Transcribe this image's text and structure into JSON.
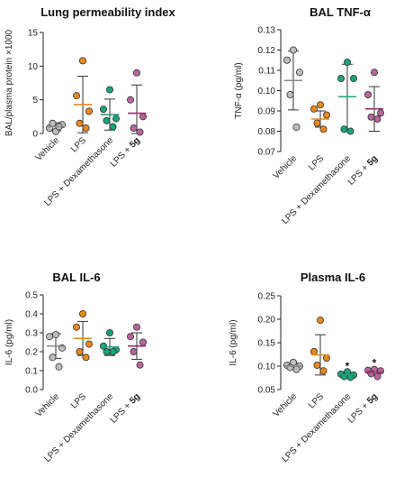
{
  "colors": {
    "vehicle": "#bdbdbd",
    "lps": "#e8891c",
    "dexamethasone": "#1aa37a",
    "lps5g": "#b5669a",
    "mean_vehicle": "#8a8a8a",
    "mean_lps": "#e8891c",
    "mean_dex": "#1aa37a",
    "mean_5g": "#9c2a6a"
  },
  "chart_data": [
    {
      "type": "scatter",
      "title": "Lung permeability index",
      "ylabel": "BAL/plasma protein ×1000",
      "ylim": [
        0,
        15
      ],
      "yticks": [
        "0",
        "5",
        "10",
        "15"
      ],
      "categories": [
        {
          "label": "Vehicle",
          "plain": "Vehicle",
          "bold": ""
        },
        {
          "label": "LPS",
          "plain": "LPS",
          "bold": ""
        },
        {
          "label": "LPS + Dexamethasone",
          "plain": "LPS + Dexamethasone",
          "bold": ""
        },
        {
          "label": "LPS + 5g",
          "plain": "LPS + ",
          "bold": "5g"
        }
      ],
      "series": [
        {
          "points": [
            0.3,
            0.8,
            1.3,
            1.5,
            1.0
          ],
          "mean": 1.0,
          "sd": 0.6
        },
        {
          "points": [
            10.8,
            5.6,
            3.3,
            1.5,
            0.8
          ],
          "mean": 4.3,
          "sd": 4.2
        },
        {
          "points": [
            6.5,
            3.6,
            2.2,
            1.9,
            1.0
          ],
          "mean": 2.8,
          "sd": 2.3
        },
        {
          "points": [
            9.0,
            5.0,
            2.5,
            0.8,
            0.2
          ],
          "mean": 3.0,
          "sd": 4.2
        }
      ],
      "stars": [
        "",
        "",
        "",
        ""
      ]
    },
    {
      "type": "scatter",
      "title": "BAL TNF-α",
      "ylabel": "TNF-α (pg/ml)",
      "ylim": [
        0.07,
        0.13
      ],
      "yticks": [
        "0.07",
        "0.08",
        "0.09",
        "0.10",
        "0.11",
        "0.12",
        "0.13"
      ],
      "categories": [
        {
          "label": "Vehicle",
          "plain": "Vehicle",
          "bold": ""
        },
        {
          "label": "LPS",
          "plain": "LPS",
          "bold": ""
        },
        {
          "label": "LPS + Dexamethasone",
          "plain": "LPS + Dexamethasone",
          "bold": ""
        },
        {
          "label": "LPS + 5g",
          "plain": "LPS + ",
          "bold": "5g"
        }
      ],
      "series": [
        {
          "points": [
            0.12,
            0.115,
            0.109,
            0.098,
            0.082
          ],
          "mean": 0.105,
          "sd": 0.0145
        },
        {
          "points": [
            0.093,
            0.091,
            0.088,
            0.084,
            0.081
          ],
          "mean": 0.086,
          "sd": 0.004
        },
        {
          "points": [
            0.114,
            0.106,
            0.106,
            0.081,
            0.08
          ],
          "mean": 0.097,
          "sd": 0.016
        },
        {
          "points": [
            0.109,
            0.098,
            0.089,
            0.087,
            0.086
          ],
          "mean": 0.091,
          "sd": 0.011
        }
      ],
      "stars": [
        "",
        "",
        "",
        ""
      ]
    },
    {
      "type": "scatter",
      "title": "BAL IL-6",
      "ylabel": "IL-6 (pg/ml)",
      "ylim": [
        0,
        0.5
      ],
      "yticks": [
        "0.0",
        "0.1",
        "0.2",
        "0.3",
        "0.4",
        "0.5"
      ],
      "categories": [
        {
          "label": "Vehicle",
          "plain": "Vehicle",
          "bold": ""
        },
        {
          "label": "LPS",
          "plain": "LPS",
          "bold": ""
        },
        {
          "label": "LPS + Dexamethasone",
          "plain": "LPS + Dexamethasone",
          "bold": ""
        },
        {
          "label": "LPS + 5g",
          "plain": "LPS + ",
          "bold": "5g"
        }
      ],
      "series": [
        {
          "points": [
            0.29,
            0.28,
            0.22,
            0.17,
            0.12
          ],
          "mean": 0.23,
          "sd": 0.065
        },
        {
          "points": [
            0.4,
            0.33,
            0.24,
            0.2,
            0.17
          ],
          "mean": 0.27,
          "sd": 0.09
        },
        {
          "points": [
            0.3,
            0.23,
            0.21,
            0.2,
            0.2
          ],
          "mean": 0.225,
          "sd": 0.045
        },
        {
          "points": [
            0.33,
            0.28,
            0.25,
            0.2,
            0.13
          ],
          "mean": 0.23,
          "sd": 0.07
        }
      ],
      "stars": [
        "",
        "",
        "",
        ""
      ]
    },
    {
      "type": "scatter",
      "title": "Plasma IL-6",
      "ylabel": "IL-6 (pg/ml)",
      "ylim": [
        0.05,
        0.25
      ],
      "yticks": [
        "0.05",
        "0.10",
        "0.15",
        "0.20",
        "0.25"
      ],
      "categories": [
        {
          "label": "Vehicle",
          "plain": "Vehicle",
          "bold": ""
        },
        {
          "label": "LPS",
          "plain": "LPS",
          "bold": ""
        },
        {
          "label": "LPS + Dexamethasone",
          "plain": "LPS + Dexamethasone",
          "bold": ""
        },
        {
          "label": "LPS + 5g",
          "plain": "LPS + ",
          "bold": "5g"
        }
      ],
      "series": [
        {
          "points": [
            0.108,
            0.102,
            0.1,
            0.097,
            0.093
          ],
          "mean": 0.1,
          "sd": 0.006
        },
        {
          "points": [
            0.198,
            0.131,
            0.117,
            0.102,
            0.09
          ],
          "mean": 0.124,
          "sd": 0.043
        },
        {
          "points": [
            0.088,
            0.083,
            0.081,
            0.078,
            0.076
          ],
          "mean": 0.082,
          "sd": 0.0045
        },
        {
          "points": [
            0.093,
            0.091,
            0.09,
            0.084,
            0.078
          ],
          "mean": 0.087,
          "sd": 0.006
        }
      ],
      "stars": [
        "",
        "",
        "*",
        "*"
      ]
    }
  ]
}
